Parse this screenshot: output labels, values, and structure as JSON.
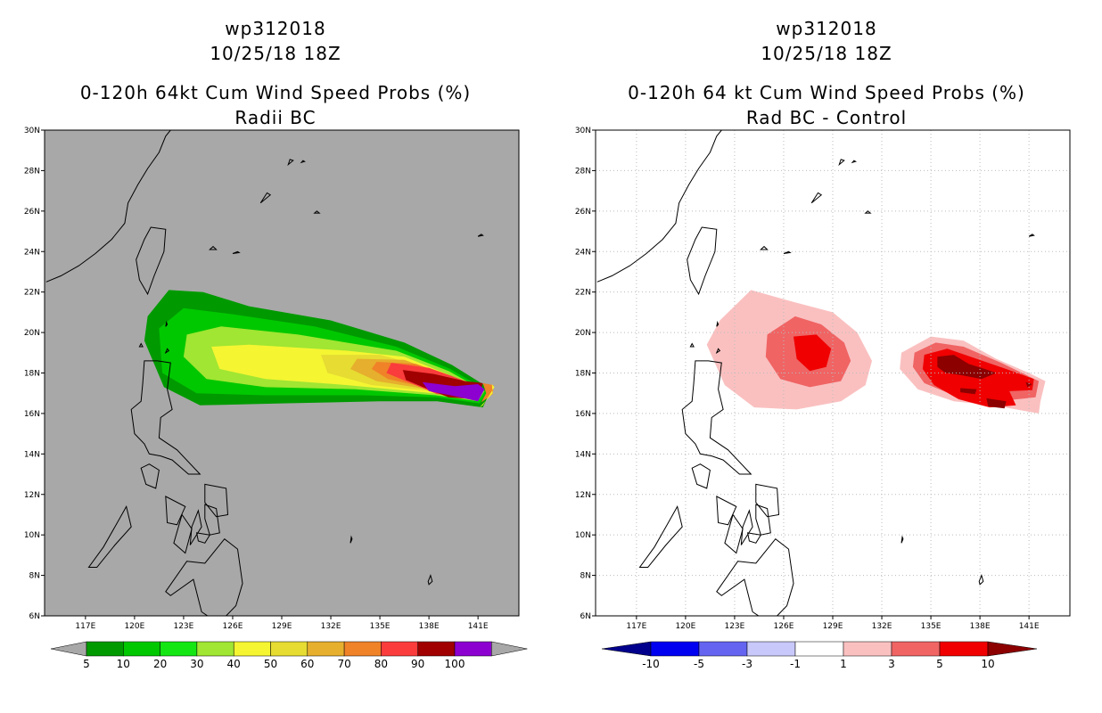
{
  "left": {
    "title_line1": "wp312018",
    "title_line2": "10/25/18 18Z",
    "title_line3": "0-120h 64kt Cum Wind Speed Probs (%)",
    "title_line4": "Radii BC",
    "colorbar_labels": [
      "5",
      "10",
      "20",
      "30",
      "40",
      "50",
      "60",
      "70",
      "80",
      "90",
      "100"
    ],
    "colorbar_colors": [
      "#009a00",
      "#00c800",
      "#14e614",
      "#a0e632",
      "#f5f532",
      "#e6dc32",
      "#e6af2d",
      "#f08228",
      "#fa3c3c",
      "#a00000",
      "#8c00d0"
    ],
    "background_color": "#a8a8a8"
  },
  "right": {
    "title_line1": "wp312018",
    "title_line2": "10/25/18 18Z",
    "title_line3": "0-120h 64 kt Cum Wind Speed Probs (%)",
    "title_line4": "Rad BC - Control",
    "colorbar_labels": [
      "-10",
      "-5",
      "-3",
      "-1",
      "1",
      "3",
      "5",
      "10"
    ],
    "colorbar_colors": [
      "#00008c",
      "#0000f0",
      "#6464f0",
      "#c8c8fa",
      "#ffffff",
      "#fac0c0",
      "#f06464",
      "#f00000",
      "#8c0000"
    ]
  },
  "axes": {
    "lat_labels": [
      "30N",
      "28N",
      "26N",
      "24N",
      "22N",
      "20N",
      "18N",
      "16N",
      "14N",
      "12N",
      "10N",
      "8N",
      "6N"
    ],
    "lon_labels": [
      "117E",
      "120E",
      "123E",
      "126E",
      "129E",
      "132E",
      "135E",
      "138E",
      "141E"
    ]
  }
}
